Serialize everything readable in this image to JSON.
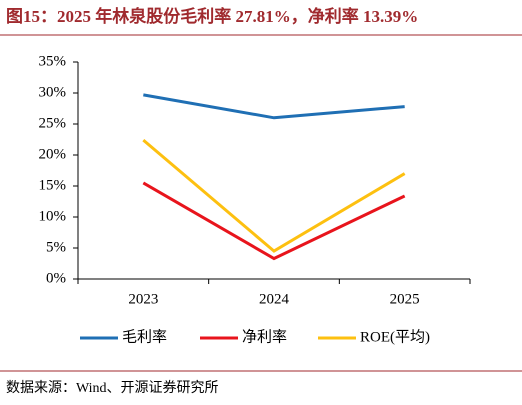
{
  "chart_data": {
    "type": "line",
    "title": "图15：2025 年林泉股份毛利率 27.81%，净利率 13.39%",
    "source": "数据来源：Wind、开源证券研究所",
    "categories": [
      "2023",
      "2024",
      "2025"
    ],
    "series": [
      {
        "name": "毛利率",
        "color": "#1f6fb4",
        "values": [
          29.7,
          26.0,
          27.81
        ]
      },
      {
        "name": "净利率",
        "color": "#e8141c",
        "values": [
          15.5,
          3.3,
          13.39
        ]
      },
      {
        "name": "ROE(平均)",
        "color": "#fdc010",
        "values": [
          22.4,
          4.5,
          17.0
        ]
      }
    ],
    "ylim": [
      0,
      35
    ],
    "yticks": [
      {
        "value": 0,
        "label": "0%"
      },
      {
        "value": 5,
        "label": "5%"
      },
      {
        "value": 10,
        "label": "10%"
      },
      {
        "value": 15,
        "label": "15%"
      },
      {
        "value": 20,
        "label": "20%"
      },
      {
        "value": 25,
        "label": "25%"
      },
      {
        "value": 30,
        "label": "30%"
      },
      {
        "value": 35,
        "label": "35%"
      }
    ],
    "grid": false,
    "legend": "bottom"
  }
}
